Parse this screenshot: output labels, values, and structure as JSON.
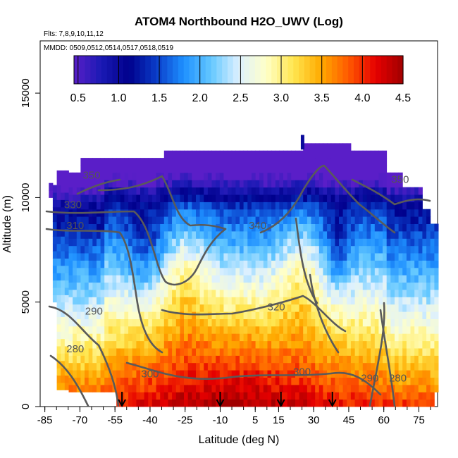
{
  "chart_data": {
    "type": "heatmap",
    "title": "ATOM4 Northbound H2O_UWV (Log)",
    "flights_label": "Flts: 7,8,9,10,11,12",
    "mmdd_label": "MMDD: 0509,0512,0514,0517,0518,0519",
    "xlabel": "Latitude (deg N)",
    "ylabel": "Altitude (m)",
    "xlim": [
      -87,
      83
    ],
    "ylim": [
      0,
      17500
    ],
    "x_ticks": [
      -85,
      -70,
      -55,
      -40,
      -25,
      -10,
      5,
      15,
      30,
      45,
      60,
      75
    ],
    "x_tick_labels": [
      "-85",
      "-70",
      "-55",
      "-40",
      "-25",
      "-10",
      "5",
      "15",
      "30",
      "45",
      "60",
      "75"
    ],
    "y_ticks": [
      0,
      5000,
      10000,
      15000
    ],
    "y_tick_labels": [
      "0",
      "5000",
      "10000",
      "15000"
    ],
    "colorbar": {
      "min": 0.45,
      "max": 4.5,
      "ticks": [
        0.5,
        1.0,
        1.5,
        2.0,
        2.5,
        3.0,
        3.5,
        4.0,
        4.5
      ],
      "tick_labels": [
        "0.5",
        "1.0",
        "1.5",
        "2.0",
        "2.5",
        "3.0",
        "3.5",
        "4.0",
        "4.5"
      ],
      "colors": [
        "#5a1ec8",
        "#1a1ab4",
        "#00008c",
        "#0a3cc8",
        "#1e90ff",
        "#64c8ff",
        "#dcf0ff",
        "#ffffc8",
        "#ffe650",
        "#ffaa00",
        "#ff5a00",
        "#e60000",
        "#a00000"
      ]
    },
    "flight_arrows_lat": [
      -52,
      -10,
      16,
      38
    ],
    "contour_labels": [
      {
        "text": "350",
        "lat": -65,
        "alt": 10900
      },
      {
        "text": "330",
        "lat": -73,
        "alt": 9500
      },
      {
        "text": "310",
        "lat": -72,
        "alt": 8500
      },
      {
        "text": "340",
        "lat": 6,
        "alt": 8500
      },
      {
        "text": "320",
        "lat": 14,
        "alt": 4600
      },
      {
        "text": "290",
        "lat": -64,
        "alt": 4400
      },
      {
        "text": "280",
        "lat": -72,
        "alt": 2600
      },
      {
        "text": "300",
        "lat": -40,
        "alt": 1400
      },
      {
        "text": "300",
        "lat": 25,
        "alt": 1500
      },
      {
        "text": "290",
        "lat": 54,
        "alt": 1200
      },
      {
        "text": "280",
        "lat": 66,
        "alt": 1200
      },
      {
        "text": "350",
        "lat": 67,
        "alt": 10700
      }
    ]
  }
}
